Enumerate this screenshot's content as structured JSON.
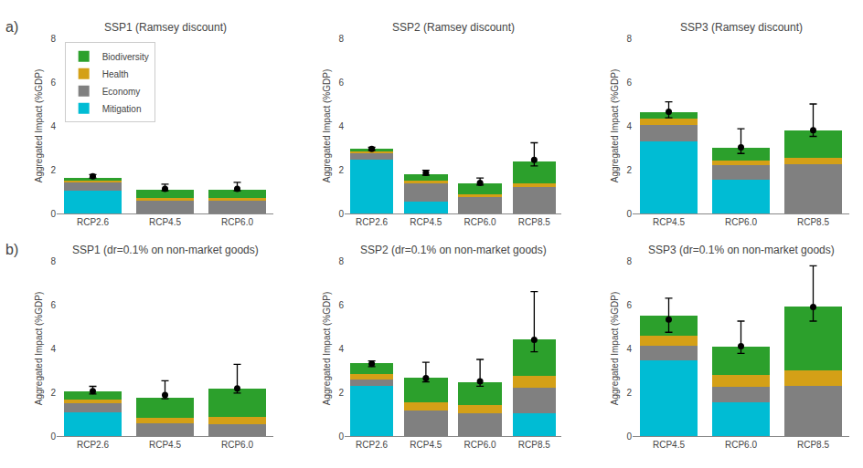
{
  "chart_data": [
    {
      "type": "bar",
      "stacked": true,
      "title": "SSP1 (Ramsey discount)",
      "annotations": [
        "a)"
      ],
      "legend": "upper left",
      "grid": false,
      "ylabel": "Aggregated Impact (%GDP)",
      "ylim": [
        0,
        8
      ],
      "yticks": [
        0,
        2,
        4,
        6,
        8
      ],
      "categories": [
        "RCP2.6",
        "RCP4.5",
        "RCP6.0"
      ],
      "series": [
        {
          "name": "Mitigation",
          "color": "#00bcd4",
          "values": [
            1.05,
            0.0,
            0.0
          ]
        },
        {
          "name": "Economy",
          "color": "#808080",
          "values": [
            0.38,
            0.62,
            0.62
          ]
        },
        {
          "name": "Health",
          "color": "#d4a017",
          "values": [
            0.08,
            0.08,
            0.08
          ]
        },
        {
          "name": "Biodiversity",
          "color": "#2ca02c",
          "values": [
            0.12,
            0.38,
            0.38
          ]
        }
      ],
      "dots": {
        "values": [
          1.7,
          1.12,
          1.12
        ],
        "err_lo": [
          0.08,
          0.08,
          0.08
        ],
        "err_hi": [
          0.08,
          0.22,
          0.3
        ],
        "color": "black",
        "marker": "circle"
      }
    },
    {
      "type": "bar",
      "stacked": true,
      "title": "SSP2 (Ramsey discount)",
      "grid": false,
      "ylabel": "Aggregated Impact (%GDP)",
      "ylim": [
        0,
        8
      ],
      "yticks": [
        0,
        2,
        4,
        6,
        8
      ],
      "categories": [
        "RCP2.6",
        "RCP4.5",
        "RCP6.0",
        "RCP8.5"
      ],
      "series": [
        {
          "name": "Mitigation",
          "color": "#00bcd4",
          "values": [
            2.45,
            0.55,
            0.0,
            0.0
          ]
        },
        {
          "name": "Economy",
          "color": "#808080",
          "values": [
            0.3,
            0.85,
            0.78,
            1.2
          ]
        },
        {
          "name": "Health",
          "color": "#d4a017",
          "values": [
            0.08,
            0.08,
            0.08,
            0.18
          ]
        },
        {
          "name": "Biodiversity",
          "color": "#2ca02c",
          "values": [
            0.12,
            0.3,
            0.52,
            1.0
          ]
        }
      ],
      "dots": {
        "values": [
          2.95,
          1.85,
          1.4,
          2.45
        ],
        "err_lo": [
          0.07,
          0.1,
          0.1,
          0.28
        ],
        "err_hi": [
          0.07,
          0.12,
          0.22,
          0.78
        ],
        "color": "black",
        "marker": "circle"
      }
    },
    {
      "type": "bar",
      "stacked": true,
      "title": "SSP3 (Ramsey discount)",
      "grid": false,
      "ylabel": "Aggregated Impact (%GDP)",
      "ylim": [
        0,
        8
      ],
      "yticks": [
        0,
        2,
        4,
        6,
        8
      ],
      "categories": [
        "RCP4.5",
        "RCP6.0",
        "RCP8.5"
      ],
      "series": [
        {
          "name": "Mitigation",
          "color": "#00bcd4",
          "values": [
            3.3,
            1.55,
            0.0
          ]
        },
        {
          "name": "Economy",
          "color": "#808080",
          "values": [
            0.75,
            0.65,
            2.25
          ]
        },
        {
          "name": "Health",
          "color": "#d4a017",
          "values": [
            0.28,
            0.22,
            0.28
          ]
        },
        {
          "name": "Biodiversity",
          "color": "#2ca02c",
          "values": [
            0.3,
            0.58,
            1.25
          ]
        }
      ],
      "dots": {
        "values": [
          4.65,
          3.02,
          3.8
        ],
        "err_lo": [
          0.28,
          0.28,
          0.28
        ],
        "err_hi": [
          0.45,
          0.85,
          1.2
        ],
        "color": "black",
        "marker": "circle"
      }
    },
    {
      "type": "bar",
      "stacked": true,
      "title": "SSP1 (dr=0.1% on non-market goods)",
      "annotations": [
        "b)"
      ],
      "grid": false,
      "ylabel": "Aggregated Impact (%GDP)",
      "ylim": [
        0,
        8
      ],
      "yticks": [
        0,
        2,
        4,
        6,
        8
      ],
      "categories": [
        "RCP2.6",
        "RCP4.5",
        "RCP6.0"
      ],
      "series": [
        {
          "name": "Mitigation",
          "color": "#00bcd4",
          "values": [
            1.1,
            0.0,
            0.0
          ]
        },
        {
          "name": "Economy",
          "color": "#808080",
          "values": [
            0.38,
            0.6,
            0.55
          ]
        },
        {
          "name": "Health",
          "color": "#d4a017",
          "values": [
            0.18,
            0.25,
            0.32
          ]
        },
        {
          "name": "Biodiversity",
          "color": "#2ca02c",
          "values": [
            0.4,
            0.92,
            1.28
          ]
        }
      ],
      "dots": {
        "values": [
          2.05,
          1.88,
          2.18
        ],
        "err_lo": [
          0.13,
          0.18,
          0.22
        ],
        "err_hi": [
          0.22,
          0.65,
          1.1
        ],
        "color": "black",
        "marker": "circle"
      }
    },
    {
      "type": "bar",
      "stacked": true,
      "title": "SSP2 (dr=0.1% on non-market goods)",
      "grid": false,
      "ylabel": "Aggregated Impact (%GDP)",
      "ylim": [
        0,
        8
      ],
      "yticks": [
        0,
        2,
        4,
        6,
        8
      ],
      "categories": [
        "RCP2.6",
        "RCP4.5",
        "RCP6.0",
        "RCP8.5"
      ],
      "series": [
        {
          "name": "Mitigation",
          "color": "#00bcd4",
          "values": [
            2.3,
            0.0,
            0.0,
            1.05
          ]
        },
        {
          "name": "Economy",
          "color": "#808080",
          "values": [
            0.28,
            1.18,
            1.05,
            1.15
          ]
        },
        {
          "name": "Health",
          "color": "#d4a017",
          "values": [
            0.25,
            0.38,
            0.38,
            0.55
          ]
        },
        {
          "name": "Biodiversity",
          "color": "#2ca02c",
          "values": [
            0.52,
            1.12,
            1.02,
            1.65
          ]
        }
      ],
      "dots": {
        "values": [
          3.3,
          2.65,
          2.5,
          4.4
        ],
        "err_lo": [
          0.13,
          0.18,
          0.22,
          0.55
        ],
        "err_hi": [
          0.13,
          0.72,
          1.0,
          2.2
        ],
        "color": "black",
        "marker": "circle"
      }
    },
    {
      "type": "bar",
      "stacked": true,
      "title": "SSP3 (dr=0.1% on non-market goods)",
      "grid": false,
      "ylabel": "Aggregated Impact (%GDP)",
      "ylim": [
        0,
        8
      ],
      "yticks": [
        0,
        2,
        4,
        6,
        8
      ],
      "categories": [
        "RCP4.5",
        "RCP6.0",
        "RCP8.5"
      ],
      "series": [
        {
          "name": "Mitigation",
          "color": "#00bcd4",
          "values": [
            3.45,
            1.55,
            0.0
          ]
        },
        {
          "name": "Economy",
          "color": "#808080",
          "values": [
            0.68,
            0.68,
            2.3
          ]
        },
        {
          "name": "Health",
          "color": "#d4a017",
          "values": [
            0.45,
            0.58,
            0.72
          ]
        },
        {
          "name": "Biodiversity",
          "color": "#2ca02c",
          "values": [
            0.92,
            1.29,
            2.88
          ]
        }
      ],
      "dots": {
        "values": [
          5.32,
          4.1,
          5.9
        ],
        "err_lo": [
          0.58,
          0.32,
          0.65
        ],
        "err_hi": [
          0.98,
          1.15,
          1.88
        ],
        "color": "black",
        "marker": "circle"
      }
    }
  ]
}
